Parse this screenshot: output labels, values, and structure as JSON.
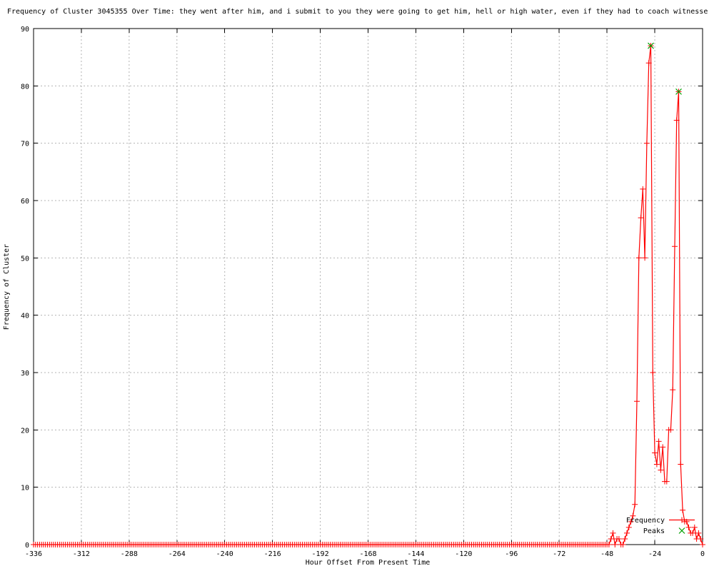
{
  "title": "Frequency of Cluster 3045355 Over Time: they went after him, and i submit to you they were going to get him, hell or high water, even if they had to coach witnesse",
  "chart_data": {
    "type": "line",
    "title": "Frequency of Cluster 3045355 Over Time: they went after him, and i submit to you they were going to get him, hell or high water, even if they had to coach witnesse",
    "xlabel": "Hour Offset From Present Time",
    "ylabel": "Frequency of Cluster",
    "xlim": [
      -336,
      0
    ],
    "ylim": [
      0,
      90
    ],
    "x_tick_step": 24,
    "y_tick_step": 10,
    "x_tick_labels": [
      "-336",
      "-312",
      "-288",
      "-264",
      "-240",
      "-216",
      "-192",
      "-168",
      "-144",
      "-120",
      "-96",
      "-72",
      "-48",
      "-24",
      "0"
    ],
    "y_tick_labels": [
      "0",
      "10",
      "20",
      "30",
      "40",
      "50",
      "60",
      "70",
      "80",
      "90"
    ],
    "grid": "dotted",
    "legend_position": "inside-bottom-right",
    "series": [
      {
        "name": "Frequency",
        "color": "#ff0000",
        "marker": "plus",
        "x_start": -336,
        "x_end": 0,
        "x_step": 1,
        "baseline": 0,
        "nonzero": {
          "-46": 1,
          "-45": 2,
          "-43": 1,
          "-42": 1,
          "-39": 1,
          "-38": 2,
          "-37": 3,
          "-36": 4,
          "-35": 5,
          "-34": 7,
          "-33": 25,
          "-32": 50,
          "-31": 57,
          "-30": 62,
          "-29": 50,
          "-28": 70,
          "-27": 84,
          "-26": 87,
          "-25": 30,
          "-24": 16,
          "-23": 14,
          "-22": 18,
          "-21": 13,
          "-20": 17,
          "-19": 11,
          "-18": 11,
          "-17": 20,
          "-16": 20,
          "-15": 27,
          "-14": 52,
          "-13": 74,
          "-12": 79,
          "-11": 14,
          "-10": 6,
          "-9": 4,
          "-8": 4,
          "-7": 3,
          "-6": 2,
          "-5": 2,
          "-4": 3,
          "-3": 1,
          "-2": 2,
          "-1": 1
        }
      },
      {
        "name": "Peaks",
        "color": "#00a000",
        "marker": "cross",
        "points": [
          [
            -26,
            87
          ],
          [
            -12,
            79
          ]
        ]
      }
    ]
  },
  "colors": {
    "frequency_line": "#ff0000",
    "peaks_marker": "#00a000",
    "grid": "#b3b3b3",
    "axis": "#000000",
    "background": "#ffffff"
  }
}
